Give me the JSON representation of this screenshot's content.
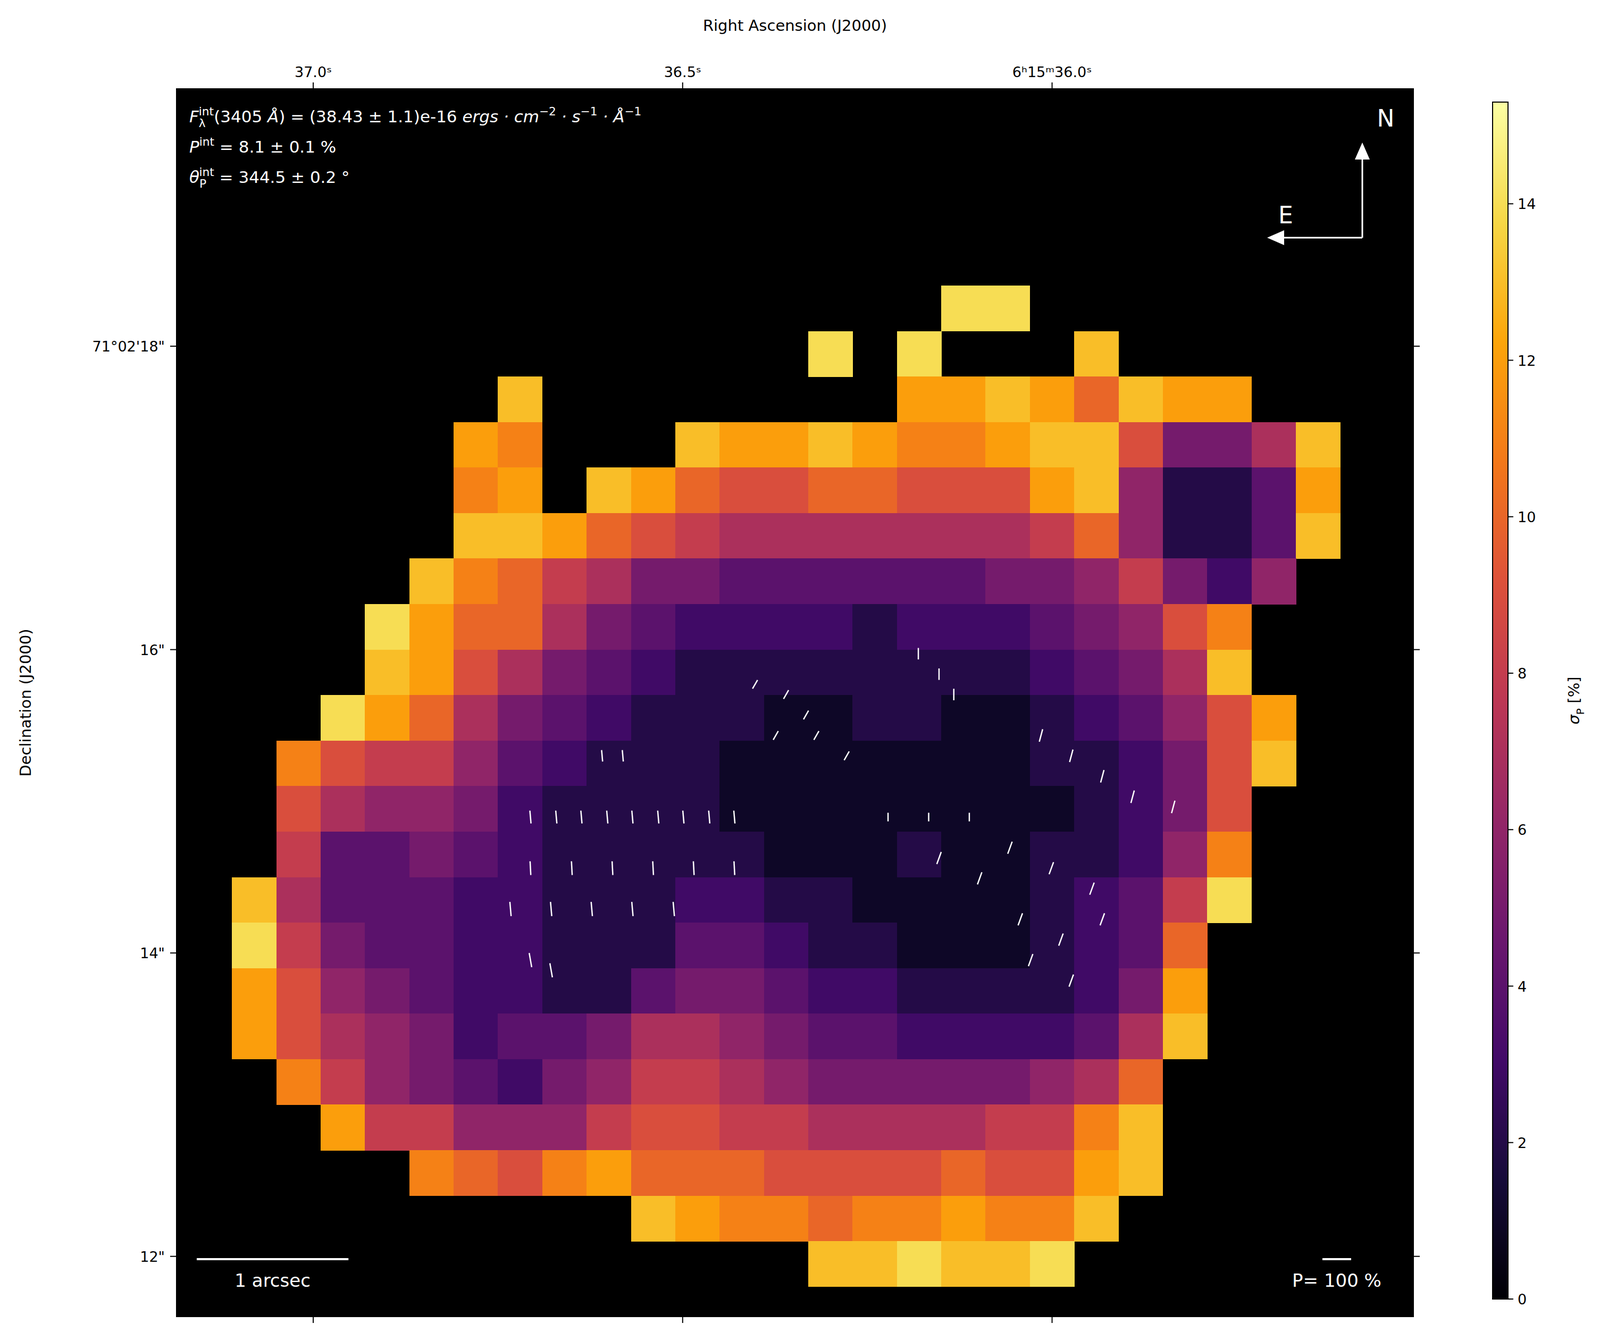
{
  "chart_data": {
    "type": "heatmap",
    "xlabel": "Right Ascension (J2000)",
    "ylabel": "Declination (J2000)",
    "xlim": [
      37.185,
      35.511
    ],
    "xticks": [
      {
        "value": 37.0,
        "label": "37.0ˢ"
      },
      {
        "value": 36.5,
        "label": "36.5ˢ"
      },
      {
        "value": 36.0,
        "label": "6ʰ15ᵐ36.0ˢ"
      }
    ],
    "ylim": [
      11.603,
      19.697
    ],
    "yticks": [
      {
        "value": 18,
        "label": "71°02'18\""
      },
      {
        "value": 16,
        "label": "16\""
      },
      {
        "value": 14,
        "label": "14\""
      },
      {
        "value": 12,
        "label": "12\""
      }
    ],
    "cells": {
      "ra_start": 37.11,
      "ra_step": 0.06,
      "dec_start": 18.4,
      "dec_step": 0.3,
      "values": [
        [
          null,
          null,
          null,
          null,
          null,
          null,
          null,
          null,
          null,
          null,
          null,
          null,
          null,
          null,
          null,
          null,
          14,
          14,
          null,
          null,
          null,
          null,
          null,
          null,
          null
        ],
        [
          null,
          null,
          null,
          null,
          null,
          null,
          null,
          null,
          null,
          null,
          null,
          null,
          null,
          14,
          null,
          14,
          null,
          null,
          null,
          13,
          null,
          null,
          null,
          null,
          null
        ],
        [
          null,
          null,
          null,
          null,
          null,
          null,
          13,
          null,
          null,
          null,
          null,
          null,
          null,
          null,
          null,
          12,
          12,
          13,
          12,
          10,
          13,
          12,
          12,
          null,
          null
        ],
        [
          null,
          null,
          null,
          null,
          null,
          12,
          11,
          null,
          null,
          null,
          13,
          12,
          12,
          13,
          12,
          11,
          11,
          12,
          13,
          13,
          9,
          5,
          5,
          7,
          13
        ],
        [
          null,
          null,
          null,
          null,
          null,
          11,
          12,
          null,
          13,
          12,
          10,
          9,
          9,
          10,
          10,
          9,
          9,
          9,
          12,
          13,
          6,
          2,
          2,
          4,
          12
        ],
        [
          null,
          null,
          null,
          null,
          null,
          13,
          13,
          12,
          10,
          9,
          8,
          7,
          7,
          7,
          7,
          7,
          7,
          7,
          8,
          10,
          6,
          2,
          2,
          4,
          13
        ],
        [
          null,
          null,
          null,
          null,
          13,
          11,
          10,
          8,
          7,
          5,
          5,
          4,
          4,
          4,
          4,
          4,
          4,
          5,
          5,
          6,
          8,
          5,
          3,
          6,
          null
        ],
        [
          null,
          null,
          null,
          14,
          12,
          10,
          10,
          7,
          5,
          4,
          3,
          3,
          3,
          3,
          2,
          3,
          3,
          3,
          4,
          5,
          6,
          9,
          11,
          null,
          null
        ],
        [
          null,
          null,
          null,
          13,
          12,
          9,
          7,
          5,
          4,
          3,
          2,
          2,
          2,
          2,
          2,
          2,
          2,
          2,
          3,
          4,
          5,
          7,
          13,
          null,
          null
        ],
        [
          null,
          null,
          14,
          12,
          10,
          7,
          5,
          4,
          3,
          2,
          2,
          2,
          1,
          1,
          2,
          2,
          1,
          1,
          2,
          3,
          4,
          6,
          9,
          12,
          null
        ],
        [
          null,
          11,
          9,
          8,
          8,
          6,
          4,
          3,
          2,
          2,
          2,
          1,
          1,
          1,
          1,
          1,
          1,
          1,
          2,
          2,
          3,
          5,
          9,
          13,
          null
        ],
        [
          null,
          9,
          7,
          6,
          6,
          5,
          3,
          2,
          2,
          2,
          2,
          1,
          1,
          1,
          1,
          1,
          1,
          1,
          1,
          2,
          3,
          5,
          9,
          null,
          null
        ],
        [
          null,
          8,
          4,
          4,
          5,
          4,
          3,
          2,
          2,
          2,
          2,
          2,
          1,
          1,
          1,
          2,
          1,
          1,
          2,
          2,
          3,
          6,
          11,
          null,
          null
        ],
        [
          13,
          7,
          4,
          4,
          4,
          3,
          3,
          2,
          2,
          2,
          3,
          3,
          2,
          2,
          1,
          1,
          1,
          1,
          2,
          3,
          4,
          8,
          14,
          null,
          null
        ],
        [
          14,
          8,
          5,
          4,
          4,
          3,
          3,
          2,
          2,
          2,
          4,
          4,
          3,
          2,
          2,
          1,
          1,
          1,
          2,
          3,
          4,
          10,
          null,
          null,
          null
        ],
        [
          12,
          9,
          6,
          5,
          4,
          3,
          3,
          2,
          2,
          4,
          5,
          5,
          4,
          3,
          3,
          2,
          2,
          2,
          2,
          3,
          5,
          12,
          null,
          null,
          null
        ],
        [
          12,
          9,
          7,
          6,
          5,
          3,
          4,
          4,
          5,
          7,
          7,
          6,
          5,
          4,
          4,
          3,
          3,
          3,
          3,
          4,
          7,
          13,
          null,
          null,
          null
        ],
        [
          null,
          11,
          8,
          6,
          5,
          4,
          3,
          5,
          6,
          8,
          8,
          7,
          6,
          5,
          5,
          5,
          5,
          5,
          6,
          7,
          10,
          null,
          null,
          null,
          null
        ],
        [
          null,
          null,
          12,
          8,
          8,
          6,
          6,
          6,
          8,
          9,
          9,
          8,
          8,
          7,
          7,
          7,
          7,
          8,
          8,
          11,
          13,
          null,
          null,
          null,
          null
        ],
        [
          null,
          null,
          null,
          null,
          11,
          10,
          9,
          11,
          12,
          10,
          10,
          10,
          9,
          9,
          9,
          9,
          10,
          9,
          9,
          12,
          13,
          null,
          null,
          null,
          null
        ],
        [
          null,
          null,
          null,
          null,
          null,
          null,
          null,
          null,
          null,
          13,
          12,
          11,
          11,
          10,
          11,
          11,
          12,
          11,
          11,
          13,
          null,
          null,
          null,
          null,
          null
        ],
        [
          null,
          null,
          null,
          null,
          null,
          null,
          null,
          null,
          null,
          null,
          null,
          null,
          null,
          13,
          13,
          14,
          13,
          13,
          14,
          null,
          null,
          null,
          null,
          null,
          null
        ]
      ]
    },
    "colorbar": {
      "label": [
        {
          "text": "σ",
          "style": "italic"
        },
        {
          "sub": "P"
        },
        {
          "text": " [%]"
        }
      ],
      "lim": [
        0,
        15.3
      ],
      "ticks": [
        0,
        2,
        4,
        6,
        8,
        10,
        12,
        14
      ]
    },
    "vectors": {
      "ra": [
        36.706,
        36.671,
        36.637,
        36.602,
        36.568,
        36.533,
        36.499,
        36.464,
        36.43,
        36.706,
        36.65,
        36.595,
        36.54,
        36.485,
        36.43,
        36.733,
        36.678,
        36.623,
        36.568,
        36.512,
        36.706,
        36.678,
        36.609,
        36.581,
        36.402,
        36.36,
        36.333,
        36.374,
        36.319,
        36.278,
        36.181,
        36.153,
        36.133,
        36.015,
        35.974,
        35.932,
        35.891,
        35.836,
        36.222,
        36.167,
        36.112,
        36.057,
        36.001,
        35.946,
        36.043,
        35.988,
        35.932,
        36.029,
        35.974,
        36.153,
        36.098
      ],
      "dec": [
        14.896,
        14.896,
        14.896,
        14.896,
        14.896,
        14.896,
        14.896,
        14.896,
        14.896,
        14.559,
        14.559,
        14.559,
        14.559,
        14.559,
        14.559,
        14.29,
        14.29,
        14.29,
        14.29,
        14.29,
        13.953,
        13.886,
        15.3,
        15.3,
        15.771,
        15.704,
        15.569,
        15.434,
        15.434,
        15.3,
        15.973,
        15.838,
        15.704,
        15.434,
        15.3,
        15.165,
        15.03,
        14.963,
        14.896,
        14.896,
        14.896,
        14.694,
        14.559,
        14.424,
        14.222,
        14.088,
        14.222,
        13.953,
        13.818,
        14.626,
        14.492
      ],
      "P": [
        45,
        45,
        45,
        45,
        45,
        45,
        45,
        45,
        45,
        48,
        48,
        48,
        48,
        48,
        48,
        50,
        50,
        50,
        50,
        50,
        50,
        50,
        40,
        40,
        35,
        35,
        35,
        35,
        35,
        35,
        40,
        40,
        40,
        45,
        45,
        45,
        45,
        45,
        30,
        30,
        30,
        45,
        45,
        45,
        45,
        45,
        45,
        45,
        45,
        45,
        45
      ],
      "theta": [
        5,
        5,
        5,
        5,
        5,
        5,
        5,
        5,
        5,
        3,
        3,
        3,
        3,
        3,
        3,
        5,
        5,
        5,
        5,
        5,
        10,
        10,
        5,
        5,
        330,
        330,
        330,
        330,
        330,
        330,
        0,
        0,
        0,
        345,
        345,
        345,
        345,
        345,
        0,
        0,
        0,
        340,
        340,
        340,
        340,
        340,
        340,
        340,
        340,
        340,
        340
      ]
    },
    "vector_scale": {
      "value": 100,
      "label": "P= 100 %"
    },
    "scalebar": {
      "value": 1,
      "label": "1 arcsec"
    },
    "compass": {
      "north": "N",
      "east": "E"
    },
    "annotations": [
      [
        {
          "text": "F",
          "style": "italic"
        },
        {
          "sub": "λ",
          "sup": "int"
        },
        {
          "text": "(3405 "
        },
        {
          "text": "Å",
          "style": "italic"
        },
        {
          "text": ") = (38.43 ± 1.1)e-16 "
        },
        {
          "text": "ergs · cm",
          "style": "italic"
        },
        {
          "sup": "−2"
        },
        {
          "text": " · s",
          "style": "italic"
        },
        {
          "sup": "−1"
        },
        {
          "text": " · Å",
          "style": "italic"
        },
        {
          "sup": "−1"
        }
      ],
      [
        {
          "text": "P",
          "style": "italic"
        },
        {
          "sup": "int"
        },
        {
          "text": " = 8.1 ± 0.1 %"
        }
      ],
      [
        {
          "text": "θ",
          "style": "italic"
        },
        {
          "sub": "P",
          "sup": "int"
        },
        {
          "text": " = 344.5 ± 0.2 °"
        }
      ]
    ]
  }
}
